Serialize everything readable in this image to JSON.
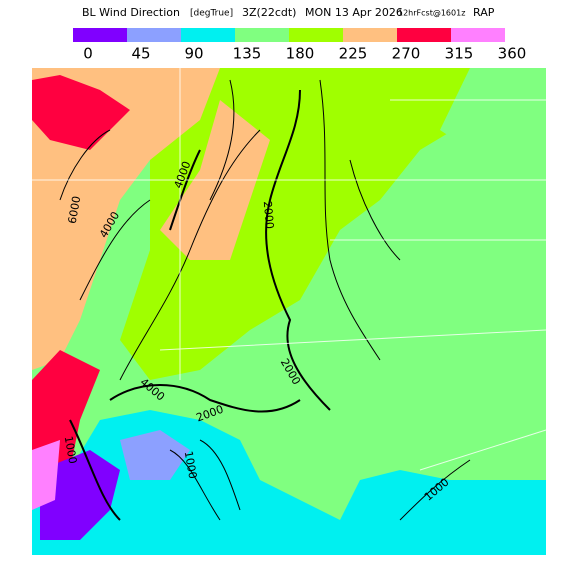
{
  "title": {
    "name": "BL Wind Direction",
    "units": "[degTrue]",
    "valid": "3Z(22cdt)",
    "date": "MON 13 Apr 2026",
    "forecast": "12hrFcst@1601z",
    "model": "RAP"
  },
  "colorbar": {
    "colors": [
      "#8000ff",
      "#8ca0ff",
      "#00f0f0",
      "#80ff80",
      "#a0ff00",
      "#ffc080",
      "#ff0040",
      "#ff80ff"
    ],
    "labels": [
      0,
      45,
      90,
      135,
      180,
      225,
      270,
      315,
      360
    ]
  },
  "contour_labels": [
    "4000",
    "4000",
    "6000",
    "2000",
    "2000",
    "4000",
    "2000",
    "1000",
    "1000",
    "1000"
  ]
}
